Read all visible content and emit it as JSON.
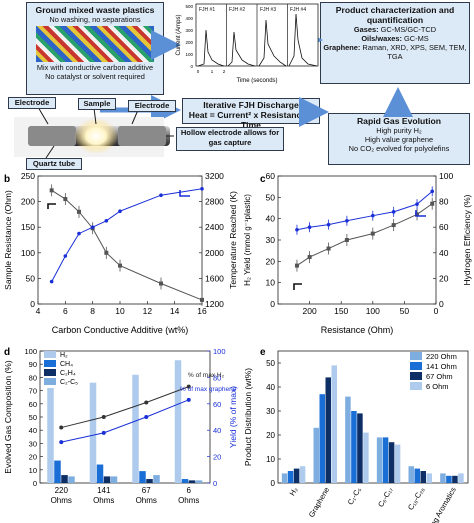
{
  "top": {
    "feedstock_box": {
      "title": "Ground mixed waste plastics",
      "line1": "No washing, no separations",
      "line2": "Mix with conductive carbon additive",
      "line3": "No catalyst or solvent required"
    },
    "apparatus": {
      "electrode_left": "Electrode",
      "sample": "Sample",
      "electrode_right": "Electrode",
      "quartz_tube": "Quartz tube",
      "hollow_electrode": "Hollow electrode allows for gas capture"
    },
    "fjh_plot": {
      "panels": [
        "FJH #1",
        "FJH #2",
        "FJH #3",
        "FJH #4"
      ],
      "ylabel": "Current (Amps)",
      "xlabel": "Time (seconds)",
      "yticks": [
        "500",
        "400",
        "300",
        "200",
        "100",
        "0"
      ],
      "xticks": [
        "0",
        "1",
        "2"
      ]
    },
    "discharge_box": {
      "title": "Iterative FJH Discharge",
      "formula": "Heat = Current² x Resistance x Time"
    },
    "product_box": {
      "title": "Product characterization and quantification",
      "gases_label": "Gases:",
      "gases_text": "GC-MS/GC-TCD",
      "oils_label": "Oils/waxes:",
      "oils_text": "GC-MS",
      "graphene_label": "Graphene:",
      "graphene_text": "Raman, XRD, XPS, SEM, TEM, TGA"
    },
    "evolution_box": {
      "title": "Rapid Gas Evolution",
      "line1": "High purity H₂",
      "line2": "High value graphene",
      "line3": "No CO₂ evolved for polyolefins"
    }
  },
  "panel_b": {
    "letter": "b",
    "xlabel": "Carbon Conductive Additive (wt%)",
    "ylabel_left": "Sample Resistance (Ohm)",
    "ylabel_right": "Temperature Reached (K)",
    "xticks": [
      "4",
      "6",
      "8",
      "10",
      "12",
      "14",
      "16"
    ],
    "yticks_left": [
      "0",
      "50",
      "100",
      "150",
      "200",
      "250"
    ],
    "yticks_right": [
      "1200",
      "1600",
      "2000",
      "2400",
      "2800",
      "3200"
    ]
  },
  "panel_c": {
    "letter": "c",
    "xlabel": "Resistance (Ohm)",
    "ylabel_left": "H₂ Yield (mmol g⁻¹plastic)",
    "ylabel_right": "Hydrogen Efficiency (%)",
    "xticks": [
      "200",
      "150",
      "100",
      "50",
      "0"
    ],
    "yticks_left": [
      "0",
      "10",
      "20",
      "30",
      "40",
      "50",
      "60"
    ],
    "yticks_right": [
      "0",
      "20",
      "40",
      "60",
      "80",
      "100"
    ]
  },
  "panel_d": {
    "letter": "d",
    "ylabel_left": "Evolved Gas Composition (%)",
    "ylabel_right": "Yield (% of max)",
    "xticks": [
      "220 Ohms",
      "141 Ohms",
      "67 Ohms",
      "6 Ohms"
    ],
    "yticks_left": [
      "0",
      "10",
      "20",
      "30",
      "40",
      "50",
      "60",
      "70",
      "80",
      "90",
      "100"
    ],
    "yticks_right": [
      "0",
      "20",
      "40",
      "60",
      "80",
      "100"
    ],
    "legend": [
      "H₂",
      "CH₄",
      "C₂H₄",
      "C₂-C₅"
    ],
    "annotation_h2": "% of max H₂",
    "annotation_graphene": "% of max graphene"
  },
  "panel_e": {
    "letter": "e",
    "ylabel": "Product Distribution (wt%)",
    "yticks": [
      "0",
      "10",
      "20",
      "30",
      "40",
      "50"
    ],
    "legend": [
      "220 Ohm",
      "141 Ohm",
      "67 Ohm",
      "6 Ohm"
    ],
    "categories": [
      "H₂",
      "Graphene",
      "C₁-C₅",
      "C₆-C₁₇",
      "C₁₈-C₂₈",
      "1-4 Ring Aromatics"
    ]
  },
  "colors": {
    "gray_series": "#555555",
    "blue_series": "#1a2fd8",
    "bar_series": [
      "#aecbee",
      "#1a6fd6",
      "#0d2f66",
      "#7eaee0"
    ],
    "box_fill": "#dce9f6",
    "arrow": "#5b8fd6"
  },
  "chart_data": [
    {
      "type": "line",
      "panel": "b",
      "x": [
        5,
        6,
        7,
        8,
        9,
        10,
        13,
        16
      ],
      "series": [
        {
          "axis": "left",
          "values": [
            222,
            205,
            180,
            148,
            100,
            75,
            40,
            8
          ]
        },
        {
          "axis": "right",
          "values": [
            1550,
            1950,
            2300,
            2400,
            2500,
            2650,
            2900,
            3000
          ]
        }
      ],
      "xlim": [
        4,
        16
      ],
      "ylim_left": [
        0,
        250
      ],
      "ylim_right": [
        1200,
        3200
      ]
    },
    {
      "type": "line",
      "panel": "c",
      "x": [
        220,
        200,
        170,
        141,
        100,
        67,
        30,
        6
      ],
      "series": [
        {
          "axis": "left",
          "values": [
            18,
            22,
            26,
            30,
            33,
            37,
            42,
            47
          ]
        },
        {
          "axis": "right",
          "values": [
            58,
            60,
            62,
            65,
            69,
            72,
            78,
            88
          ]
        }
      ],
      "xlim": [
        250,
        0
      ],
      "ylim_left": [
        0,
        60
      ],
      "ylim_right": [
        0,
        100
      ]
    },
    {
      "type": "bar",
      "panel": "d",
      "categories": [
        "220 Ohms",
        "141 Ohms",
        "67 Ohms",
        "6 Ohms"
      ],
      "series": [
        {
          "name": "H₂",
          "values": [
            72,
            76,
            82,
            93
          ]
        },
        {
          "name": "CH₄",
          "values": [
            17,
            14,
            9,
            3
          ]
        },
        {
          "name": "C₂H₄",
          "values": [
            6,
            5,
            3,
            2
          ]
        },
        {
          "name": "C₂-C₅",
          "values": [
            5,
            5,
            6,
            2
          ]
        }
      ],
      "lines": [
        {
          "name": "% of max H₂",
          "values": [
            42,
            50,
            61,
            73
          ]
        },
        {
          "name": "% of max graphene",
          "values": [
            31,
            38,
            50,
            63
          ]
        }
      ],
      "ylim": [
        0,
        100
      ],
      "ylim_right": [
        0,
        100
      ]
    },
    {
      "type": "bar",
      "panel": "e",
      "categories": [
        "H₂",
        "Graphene",
        "C₁-C₅",
        "C₆-C₁₇",
        "C₁₈-C₂₈",
        "1-4 Ring Aromatics"
      ],
      "series": [
        {
          "name": "220 Ohm",
          "values": [
            4,
            23,
            36,
            19,
            7,
            4
          ]
        },
        {
          "name": "141 Ohm",
          "values": [
            5,
            37,
            30,
            19,
            6,
            3
          ]
        },
        {
          "name": "67 Ohm",
          "values": [
            6,
            44,
            29,
            17,
            5,
            3
          ]
        },
        {
          "name": "6 Ohm",
          "values": [
            7,
            49,
            21,
            16,
            4,
            4
          ]
        }
      ],
      "ylim": [
        0,
        55
      ]
    }
  ]
}
